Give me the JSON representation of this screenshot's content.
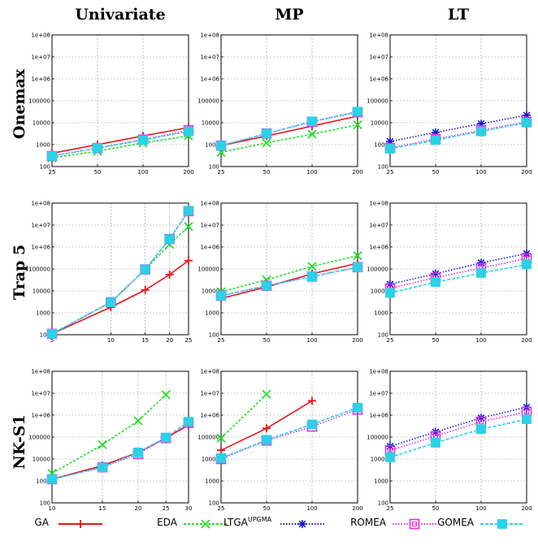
{
  "figure": {
    "column_titles": [
      "Univariate",
      "MP",
      "LT"
    ],
    "row_titles": [
      "Onemax",
      "Trap 5",
      "NK-S1"
    ],
    "colors": {
      "GA": "#e8141b",
      "EDA": "#22e028",
      "LTGA": "#1c1ccc",
      "ROMEA": "#e62ee6",
      "GOMEA": "#2ad2e6"
    }
  },
  "legend": [
    {
      "key": "GA",
      "label": "GA",
      "sup": ""
    },
    {
      "key": "EDA",
      "label": "EDA",
      "sup": ""
    },
    {
      "key": "LTGA",
      "label": "LTGA",
      "sup": "UPGMA"
    },
    {
      "key": "ROMEA",
      "label": "ROMEA",
      "sup": ""
    },
    {
      "key": "GOMEA",
      "label": "GOMEA",
      "sup": ""
    }
  ],
  "chart_data": [
    {
      "type": "line",
      "row": "Onemax",
      "column": "Univariate",
      "x_scale": "log",
      "y_scale": "log",
      "x_ticks": [
        "25",
        "50",
        "100",
        "200"
      ],
      "xlim": [
        25,
        200
      ],
      "ylim": [
        100,
        100000000
      ],
      "y_ticks": [
        "100",
        "1000",
        "10000",
        "100000",
        "1e+06",
        "1e+07",
        "1e+08"
      ],
      "grid": true,
      "series": [
        {
          "name": "GA",
          "x": [
            25,
            50,
            100,
            200
          ],
          "y": [
            400,
            1000,
            2500,
            6000
          ]
        },
        {
          "name": "EDA",
          "x": [
            25,
            50,
            100,
            200
          ],
          "y": [
            250,
            500,
            1200,
            2500
          ]
        },
        {
          "name": "ROMEA",
          "x": [
            25,
            50,
            100,
            200
          ],
          "y": [
            300,
            700,
            1700,
            4500
          ]
        },
        {
          "name": "GOMEA",
          "x": [
            25,
            50,
            100,
            200
          ],
          "y": [
            300,
            700,
            1600,
            4000
          ]
        }
      ]
    },
    {
      "type": "line",
      "row": "Onemax",
      "column": "MP",
      "x_scale": "log",
      "y_scale": "log",
      "x_ticks": [
        "25",
        "50",
        "100",
        "200"
      ],
      "xlim": [
        25,
        200
      ],
      "ylim": [
        100,
        100000000
      ],
      "y_ticks": [
        "100",
        "1000",
        "10000",
        "100000",
        "1e+06",
        "1e+07",
        "1e+08"
      ],
      "grid": true,
      "series": [
        {
          "name": "GA",
          "x": [
            25,
            50,
            100,
            200
          ],
          "y": [
            900,
            2500,
            7000,
            20000
          ]
        },
        {
          "name": "EDA",
          "x": [
            25,
            50,
            100,
            200
          ],
          "y": [
            450,
            1200,
            3000,
            8000
          ]
        },
        {
          "name": "ROMEA",
          "x": [
            25,
            50,
            100,
            200
          ],
          "y": [
            900,
            3200,
            11000,
            30000
          ]
        },
        {
          "name": "GOMEA",
          "x": [
            25,
            50,
            100,
            200
          ],
          "y": [
            900,
            3200,
            11500,
            32000
          ]
        }
      ]
    },
    {
      "type": "line",
      "row": "Onemax",
      "column": "LT",
      "x_scale": "log",
      "y_scale": "log",
      "x_ticks": [
        "25",
        "50",
        "100",
        "200"
      ],
      "xlim": [
        25,
        200
      ],
      "ylim": [
        100,
        100000000
      ],
      "y_ticks": [
        "100",
        "1000",
        "10000",
        "100000",
        "1e+06",
        "1e+07",
        "1e+08"
      ],
      "grid": true,
      "series": [
        {
          "name": "LTGA",
          "x": [
            25,
            50,
            100,
            200
          ],
          "y": [
            1400,
            3600,
            9000,
            22000
          ]
        },
        {
          "name": "ROMEA",
          "x": [
            25,
            50,
            100,
            200
          ],
          "y": [
            700,
            1800,
            4500,
            11000
          ]
        },
        {
          "name": "GOMEA",
          "x": [
            25,
            50,
            100,
            200
          ],
          "y": [
            650,
            1600,
            4000,
            10000
          ]
        }
      ]
    },
    {
      "type": "line",
      "row": "Trap 5",
      "column": "Univariate",
      "x_scale": "log",
      "y_scale": "log",
      "x_ticks": [
        "5",
        "10",
        "15",
        "20",
        "25"
      ],
      "xlim": [
        5,
        25
      ],
      "ylim": [
        100,
        100000000
      ],
      "y_ticks": [
        "100",
        "1000",
        "10000",
        "100000",
        "1e+06",
        "1e+07",
        "1e+08"
      ],
      "grid": true,
      "series": [
        {
          "name": "GA",
          "x": [
            5,
            10,
            15,
            20,
            25
          ],
          "y": [
            110,
            1800,
            11000,
            55000,
            240000
          ]
        },
        {
          "name": "EDA",
          "x": [
            5,
            10,
            15,
            20,
            25
          ],
          "y": [
            110,
            3000,
            95000,
            1300000,
            8500000
          ]
        },
        {
          "name": "ROMEA",
          "x": [
            5,
            10,
            15,
            20,
            25
          ],
          "y": [
            110,
            3000,
            95000,
            2300000,
            43000000
          ]
        },
        {
          "name": "GOMEA",
          "x": [
            5,
            10,
            15,
            20,
            25
          ],
          "y": [
            110,
            3000,
            95000,
            2300000,
            45000000
          ]
        }
      ]
    },
    {
      "type": "line",
      "row": "Trap 5",
      "column": "MP",
      "x_scale": "log",
      "y_scale": "log",
      "x_ticks": [
        "25",
        "50",
        "100",
        "200"
      ],
      "xlim": [
        25,
        200
      ],
      "ylim": [
        100,
        100000000
      ],
      "y_ticks": [
        "100",
        "1000",
        "10000",
        "100000",
        "1e+06",
        "1e+07",
        "1e+08"
      ],
      "grid": true,
      "series": [
        {
          "name": "GA",
          "x": [
            25,
            50,
            100,
            200
          ],
          "y": [
            4500,
            15000,
            60000,
            180000
          ]
        },
        {
          "name": "EDA",
          "x": [
            25,
            50,
            100,
            200
          ],
          "y": [
            9000,
            32000,
            130000,
            400000
          ]
        },
        {
          "name": "ROMEA",
          "x": [
            25,
            50,
            100,
            200
          ],
          "y": [
            6000,
            17000,
            45000,
            120000
          ]
        },
        {
          "name": "GOMEA",
          "x": [
            25,
            50,
            100,
            200
          ],
          "y": [
            6000,
            17000,
            45000,
            120000
          ]
        }
      ]
    },
    {
      "type": "line",
      "row": "Trap 5",
      "column": "LT",
      "x_scale": "log",
      "y_scale": "log",
      "x_ticks": [
        "25",
        "50",
        "100",
        "200"
      ],
      "xlim": [
        25,
        200
      ],
      "ylim": [
        100,
        100000000
      ],
      "y_ticks": [
        "100",
        "1000",
        "10000",
        "100000",
        "1e+06",
        "1e+07",
        "1e+08"
      ],
      "grid": true,
      "series": [
        {
          "name": "LTGA",
          "x": [
            25,
            50,
            100,
            200
          ],
          "y": [
            20000,
            60000,
            190000,
            500000
          ]
        },
        {
          "name": "ROMEA",
          "x": [
            25,
            50,
            100,
            200
          ],
          "y": [
            13000,
            40000,
            110000,
            300000
          ]
        },
        {
          "name": "GOMEA",
          "x": [
            25,
            50,
            100,
            200
          ],
          "y": [
            8000,
            25000,
            65000,
            160000
          ]
        }
      ]
    },
    {
      "type": "line",
      "row": "NK-S1",
      "column": "Univariate",
      "x_scale": "log",
      "y_scale": "log",
      "x_ticks": [
        "10",
        "15",
        "20",
        "25",
        "30"
      ],
      "xlim": [
        10,
        30
      ],
      "ylim": [
        100,
        100000000
      ],
      "y_ticks": [
        "100",
        "1000",
        "10000",
        "100000",
        "1e+06",
        "1e+07",
        "1e+08"
      ],
      "grid": true,
      "series": [
        {
          "name": "GA",
          "x": [
            10,
            15,
            20,
            25,
            30
          ],
          "y": [
            1200,
            5000,
            20000,
            90000,
            350000
          ]
        },
        {
          "name": "EDA",
          "x": [
            10,
            15,
            20,
            25
          ],
          "y": [
            2200,
            45000,
            550000,
            8500000
          ]
        },
        {
          "name": "ROMEA",
          "x": [
            10,
            15,
            20,
            25,
            30
          ],
          "y": [
            1200,
            4200,
            17000,
            90000,
            450000
          ]
        },
        {
          "name": "GOMEA",
          "x": [
            10,
            15,
            20,
            25,
            30
          ],
          "y": [
            1200,
            4200,
            20000,
            95000,
            500000
          ]
        }
      ]
    },
    {
      "type": "line",
      "row": "NK-S1",
      "column": "MP",
      "x_scale": "log",
      "y_scale": "log",
      "x_ticks": [
        "25",
        "50",
        "100",
        "200"
      ],
      "xlim": [
        25,
        200
      ],
      "ylim": [
        100,
        100000000
      ],
      "y_ticks": [
        "100",
        "1000",
        "10000",
        "100000",
        "1e+06",
        "1e+07",
        "1e+08"
      ],
      "grid": true,
      "series": [
        {
          "name": "GA",
          "x": [
            25,
            50,
            100
          ],
          "y": [
            25000,
            250000,
            4500000
          ]
        },
        {
          "name": "EDA",
          "x": [
            25,
            50
          ],
          "y": [
            90000,
            9000000
          ]
        },
        {
          "name": "ROMEA",
          "x": [
            25,
            50,
            100,
            200
          ],
          "y": [
            10000,
            70000,
            300000,
            1800000
          ]
        },
        {
          "name": "GOMEA",
          "x": [
            25,
            50,
            100,
            200
          ],
          "y": [
            11000,
            75000,
            380000,
            2200000
          ]
        }
      ]
    },
    {
      "type": "line",
      "row": "NK-S1",
      "column": "LT",
      "x_scale": "log",
      "y_scale": "log",
      "x_ticks": [
        "25",
        "50",
        "100",
        "200"
      ],
      "xlim": [
        25,
        200
      ],
      "ylim": [
        100,
        100000000
      ],
      "y_ticks": [
        "100",
        "1000",
        "10000",
        "100000",
        "1e+06",
        "1e+07",
        "1e+08"
      ],
      "grid": true,
      "series": [
        {
          "name": "LTGA",
          "x": [
            25,
            50,
            100,
            200
          ],
          "y": [
            38000,
            170000,
            750000,
            2300000
          ]
        },
        {
          "name": "ROMEA",
          "x": [
            25,
            50,
            100,
            200
          ],
          "y": [
            25000,
            110000,
            500000,
            1400000
          ]
        },
        {
          "name": "GOMEA",
          "x": [
            25,
            50,
            100,
            200
          ],
          "y": [
            12000,
            55000,
            230000,
            650000
          ]
        }
      ]
    }
  ]
}
